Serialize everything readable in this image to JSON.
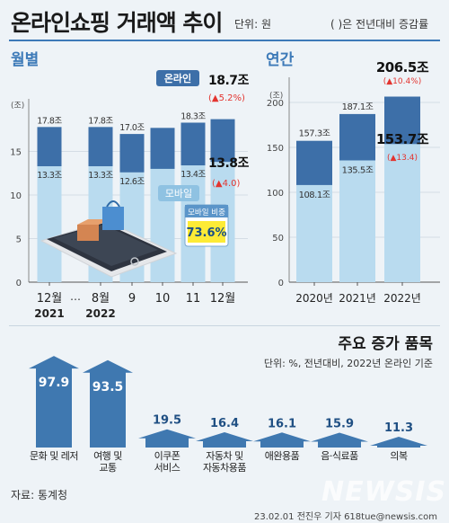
{
  "header": {
    "title": "온라인쇼핑 거래액 추이",
    "unit": "단위: 원",
    "note": "( )은 전년대비 증감률"
  },
  "colors": {
    "online": "#3d6fa8",
    "mobile": "#b9dbef",
    "arrow": "#3f78b0",
    "accent_red": "#e3342f",
    "title_blue": "#3d7ab8",
    "panel_bg": "#eef3f7"
  },
  "chart_data": [
    {
      "type": "bar",
      "title": "월별",
      "ylabel": "(조)",
      "ylim": [
        0,
        20
      ],
      "yticks": [
        0,
        5,
        10,
        15
      ],
      "categories": [
        "12월",
        "8월",
        "9",
        "10",
        "11",
        "12월"
      ],
      "category_sublabels": [
        "2021",
        "2022",
        "",
        "",
        "",
        ""
      ],
      "gap_marker": "…",
      "series": [
        {
          "name": "온라인",
          "values": [
            17.8,
            17.8,
            17.0,
            17.7,
            18.3,
            18.7
          ]
        },
        {
          "name": "모바일",
          "values": [
            13.3,
            13.3,
            12.6,
            13.0,
            13.4,
            13.8
          ]
        }
      ],
      "data_labels_online": [
        "17.8조",
        "17.8조",
        "17.0조",
        "",
        "18.3조",
        "18.7조"
      ],
      "data_labels_mobile": [
        "13.3조",
        "13.3조",
        "12.6조",
        "",
        "13.4조",
        "13.8조"
      ],
      "last_online_change": "▲5.2%",
      "last_mobile_change": "▲4.0",
      "mobile_share_label": "모바일 비중",
      "mobile_share_value": "73.6%",
      "legend": [
        "온라인",
        "모바일"
      ]
    },
    {
      "type": "bar",
      "title": "연간",
      "ylabel": "(조)",
      "ylim": [
        0,
        220
      ],
      "yticks": [
        0,
        50,
        100,
        150,
        200
      ],
      "categories": [
        "2020년",
        "2021년",
        "2022년"
      ],
      "series": [
        {
          "name": "온라인",
          "values": [
            157.3,
            187.1,
            206.5
          ]
        },
        {
          "name": "모바일",
          "values": [
            108.1,
            135.5,
            153.7
          ]
        }
      ],
      "data_labels_online": [
        "157.3조",
        "187.1조",
        "206.5조"
      ],
      "data_labels_mobile": [
        "108.1조",
        "135.5조",
        "153.7조"
      ],
      "last_online_change": "▲10.4%",
      "last_mobile_change": "▲13.4"
    },
    {
      "type": "bar",
      "title": "주요 증가 품목",
      "subtitle": "단위: %, 전년대비, 2022년 온라인 기준",
      "categories": [
        "문화 및 레저",
        "여행 및 교통",
        "이쿠폰 서비스",
        "자동차 및 자동차용품",
        "애완용품",
        "음·식료품",
        "의복"
      ],
      "category_lines": [
        [
          "문화 및 레저"
        ],
        [
          "여행 및",
          "교통"
        ],
        [
          "이쿠폰",
          "서비스"
        ],
        [
          "자동차 및",
          "자동차용품"
        ],
        [
          "애완용품"
        ],
        [
          "음·식료품"
        ],
        [
          "의복"
        ]
      ],
      "values": [
        97.9,
        93.5,
        19.5,
        16.4,
        16.1,
        15.9,
        11.3
      ],
      "value_labels": [
        "97.9",
        "93.5",
        "19.5",
        "16.4",
        "16.1",
        "15.9",
        "11.3"
      ]
    }
  ],
  "footer": {
    "source": "자료: 통계청",
    "credit": "23.02.01 전진우 기자 618tue@newsis.com",
    "watermark": "NEWSIS"
  }
}
